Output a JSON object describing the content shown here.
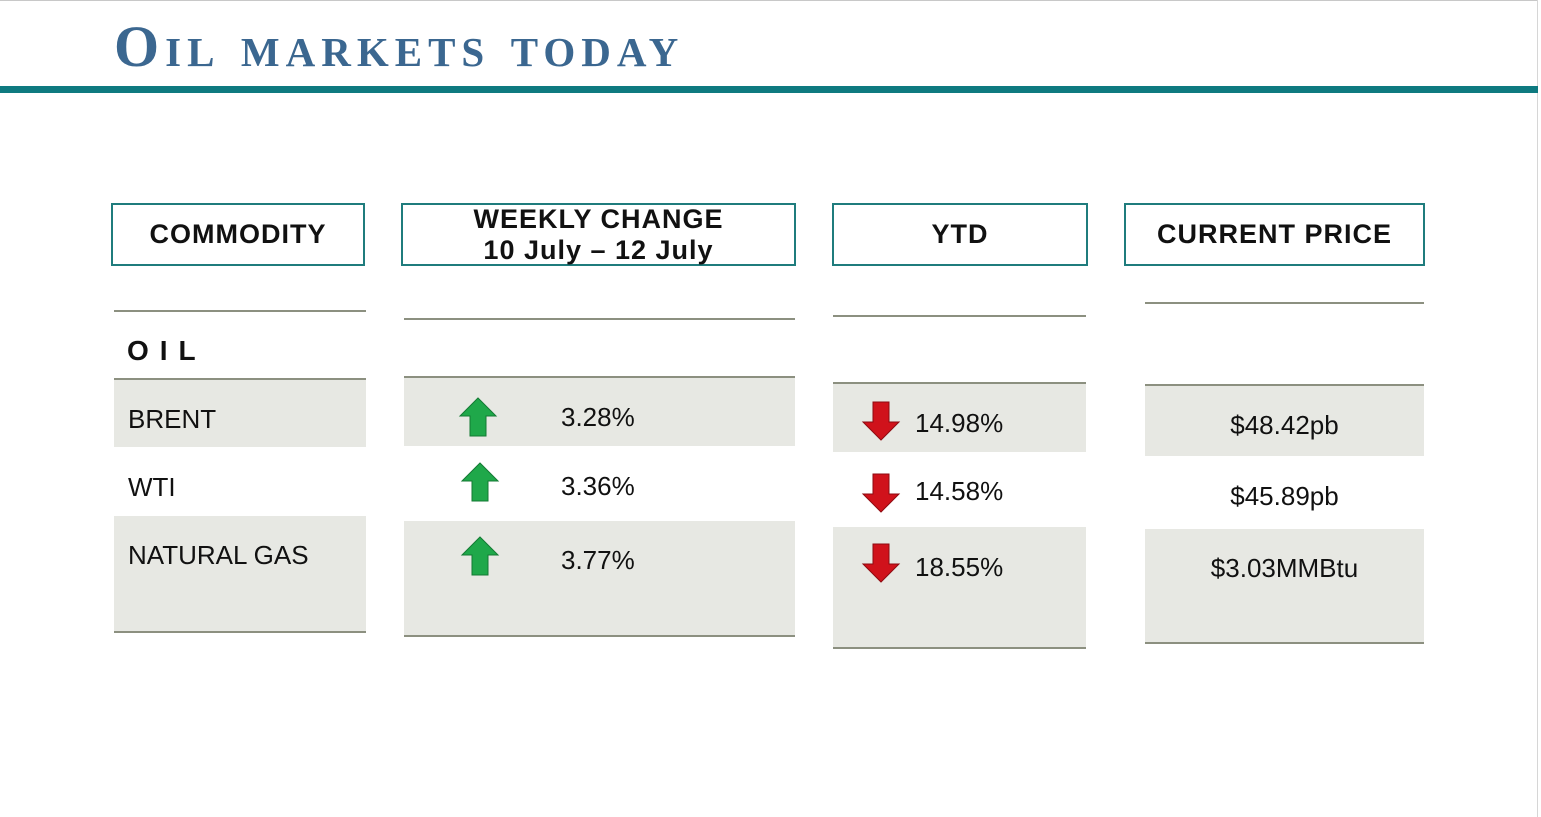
{
  "title": "Oil markets today",
  "headers": {
    "commodity": "COMMODITY",
    "weekly_change_line1": "WEEKLY CHANGE",
    "weekly_change_line2": "10 July – 12 July",
    "ytd": "YTD",
    "current_price": "CURRENT PRICE"
  },
  "section_label": "OIL",
  "rows": [
    {
      "commodity": "BRENT",
      "weekly_change": "3.28%",
      "weekly_direction": "up",
      "ytd": "14.98%",
      "ytd_direction": "down",
      "current_price": "$48.42pb"
    },
    {
      "commodity": "WTI",
      "weekly_change": "3.36%",
      "weekly_direction": "up",
      "ytd": "14.58%",
      "ytd_direction": "down",
      "current_price": "$45.89pb"
    },
    {
      "commodity": "NATURAL GAS",
      "weekly_change": "3.77%",
      "weekly_direction": "up",
      "ytd": "18.55%",
      "ytd_direction": "down",
      "current_price": "$3.03MMBtu"
    }
  ],
  "icons": {
    "up": "green-up-arrow-icon",
    "down": "red-down-arrow-icon"
  },
  "colors": {
    "title": "#3b6790",
    "title_rule": "#0e7a80",
    "header_border": "#1f7c7d",
    "band": "#e7e8e3",
    "up_arrow": "#1fa84a",
    "down_arrow": "#d0121b"
  }
}
